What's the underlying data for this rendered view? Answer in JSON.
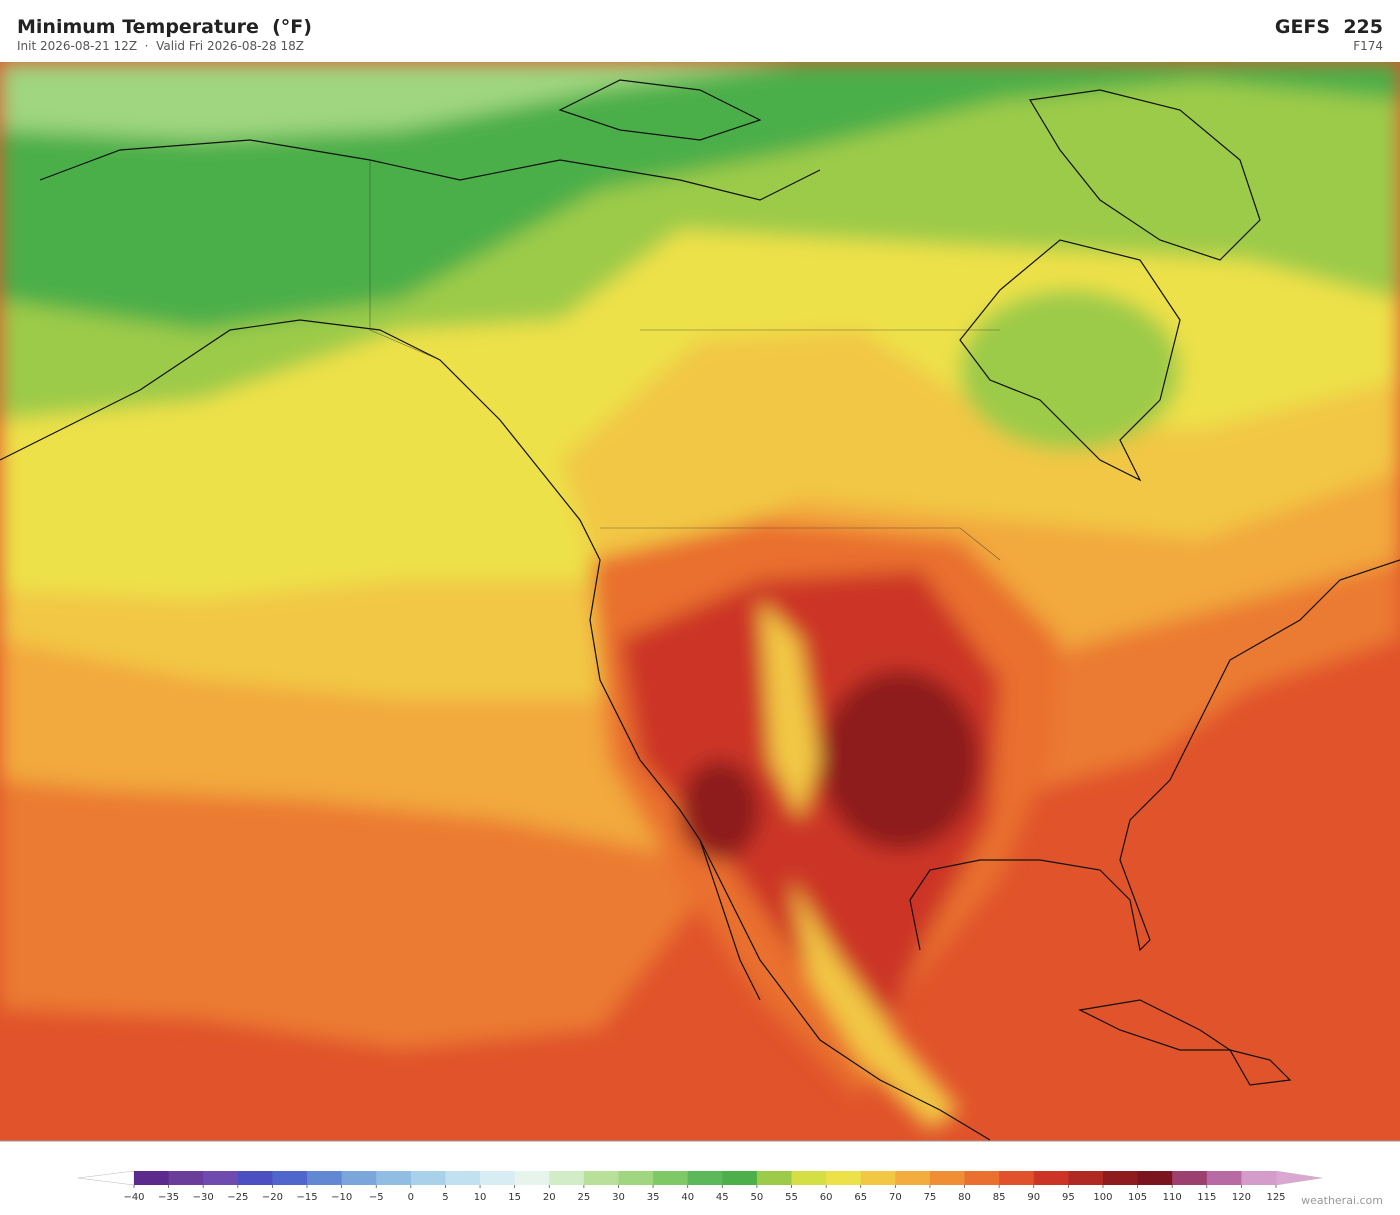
{
  "header": {
    "title": "Minimum Temperature  (°F)",
    "subtitle": "Init 2026-08-21 12Z  ·  Valid Fri 2026-08-28 18Z",
    "model": "GEFS  225",
    "forecast_hour": "F174"
  },
  "colorbar": {
    "ticks": [
      {
        "value": -40,
        "label": "−40"
      },
      {
        "value": -35,
        "label": "−35"
      },
      {
        "value": -30,
        "label": "−30"
      },
      {
        "value": -25,
        "label": "−25"
      },
      {
        "value": -20,
        "label": "−20"
      },
      {
        "value": -15,
        "label": "−15"
      },
      {
        "value": -10,
        "label": "−10"
      },
      {
        "value": -5,
        "label": "−5"
      },
      0,
      5,
      10,
      15,
      20,
      25,
      30,
      35,
      40,
      45,
      50,
      55,
      60,
      65,
      70,
      75,
      80,
      85,
      90,
      95,
      100,
      105,
      110,
      115,
      120,
      125
    ],
    "colors": [
      "#5b2a8c",
      "#6a3d9a",
      "#6f4bb0",
      "#4b4fc1",
      "#4f67cc",
      "#6288d4",
      "#7aa6db",
      "#91bde2",
      "#a9d1ea",
      "#c2e1f0",
      "#d8ecf3",
      "#e6f4ec",
      "#d2ecc8",
      "#b9e09a",
      "#9fd67f",
      "#7fc866",
      "#5cb85a",
      "#4caf4a",
      "#9ccb4a",
      "#d4de45",
      "#ede14a",
      "#f2c744",
      "#f2ad3e",
      "#ef8e35",
      "#e9702e",
      "#e0522b",
      "#cc3526",
      "#b02a23",
      "#8e1c1e",
      "#7a1520",
      "#9c4070",
      "#b86aa5",
      "#d49ccb"
    ],
    "under_color": "#ffffff",
    "over_color": "#dca6d2"
  },
  "watermark": "weatherai.com"
}
